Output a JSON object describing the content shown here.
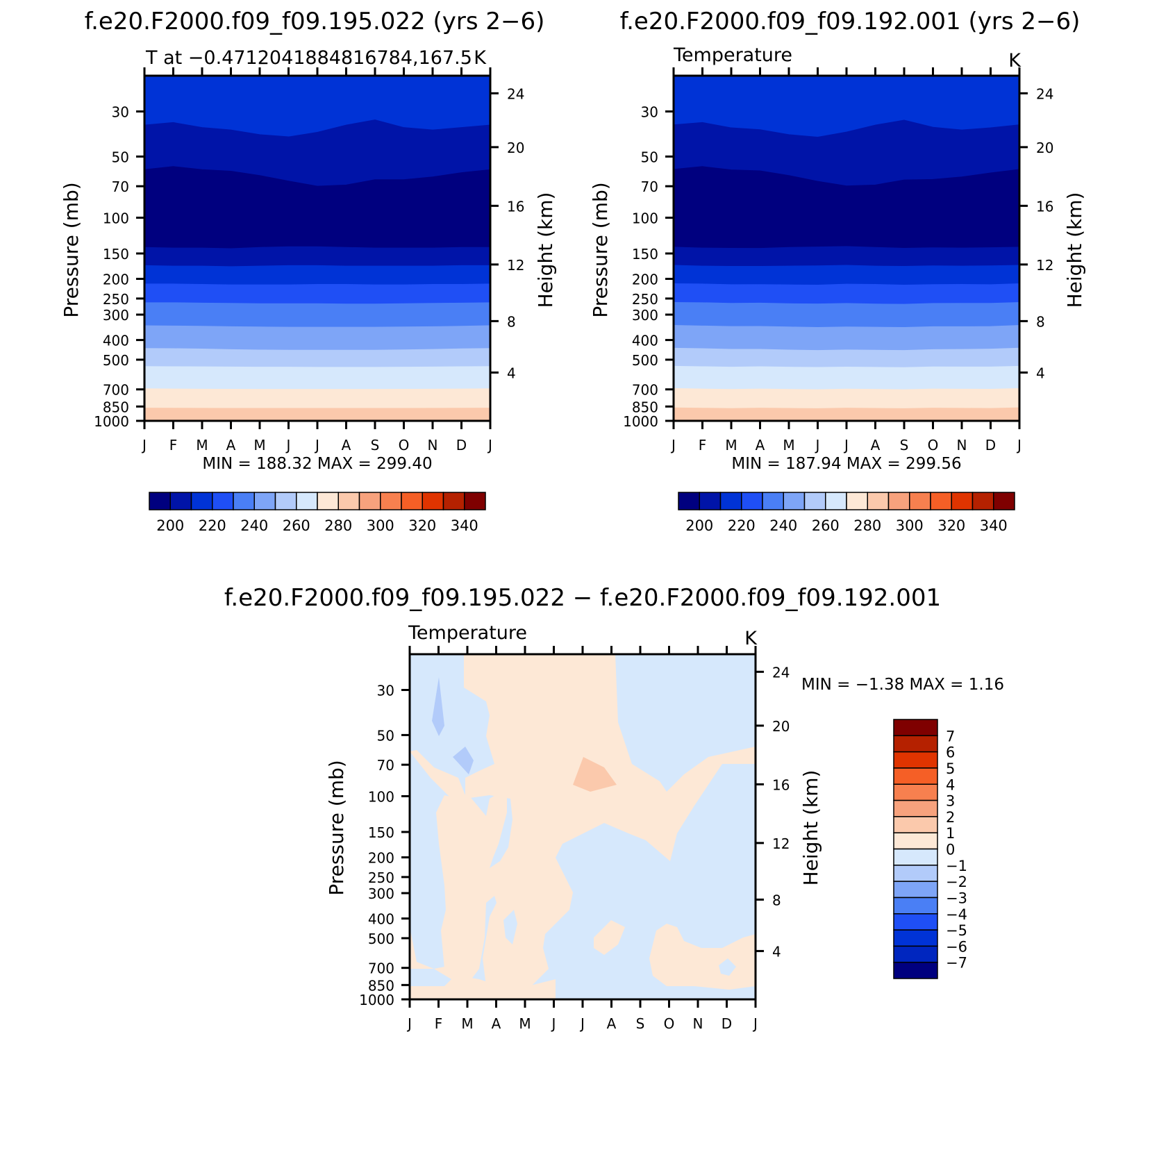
{
  "colors": {
    "abs_scale": [
      "#00007f",
      "#0014a8",
      "#0033d6",
      "#1f4ff5",
      "#4a7ff5",
      "#7ea5f7",
      "#b2cbfa",
      "#d6e8fc",
      "#fde8d6",
      "#fbc9ac",
      "#f7a27d",
      "#f7804f",
      "#f55f26",
      "#e03400",
      "#b52100",
      "#7f0000"
    ],
    "diff_scale": [
      "#00007f",
      "#0026bf",
      "#0033d6",
      "#1f4ff5",
      "#4a7ff5",
      "#7ea5f7",
      "#b2cbfa",
      "#d6e8fc",
      "#fde8d6",
      "#fbc9ac",
      "#f7a27d",
      "#f7804f",
      "#f55f26",
      "#e03400",
      "#b52100",
      "#7f0000"
    ]
  },
  "chart_data": [
    {
      "type": "heatmap",
      "title": "f.e20.F2000.f09_f09.195.022 (yrs 2−6)",
      "subtitle_left": "T at −0.4712041884816784,167.5",
      "subtitle_right": "K",
      "ylabel": "Pressure (mb)",
      "ylabel_right": "Height (km)",
      "x_ticks": [
        "J",
        "F",
        "M",
        "A",
        "M",
        "J",
        "J",
        "A",
        "S",
        "O",
        "N",
        "D",
        "J"
      ],
      "y_ticks": [
        "30",
        "50",
        "70",
        "100",
        "150",
        "200",
        "250",
        "300",
        "400",
        "500",
        "700",
        "850",
        "1000"
      ],
      "y_ticks_right": [
        "24",
        "20",
        "16",
        "12",
        "8",
        "4"
      ],
      "min_max_text": "MIN =  188.32  MAX =  299.40",
      "colorbar_labels": [
        "200",
        "220",
        "240",
        "260",
        "280",
        "300",
        "320",
        "340"
      ],
      "bands": [
        {
          "level": "below 210",
          "color_index": 2,
          "pressure_range_mb": [
            20,
            35
          ]
        },
        {
          "level": "200-210",
          "color_index": 1,
          "pressure_range_mb": [
            35,
            60
          ]
        },
        {
          "level": "190-200",
          "color_index": 0,
          "pressure_range_mb": [
            60,
            140
          ]
        },
        {
          "level": "200-210",
          "color_index": 1,
          "pressure_range_mb": [
            140,
            170
          ]
        },
        {
          "level": "210-220",
          "color_index": 2,
          "pressure_range_mb": [
            170,
            210
          ]
        },
        {
          "level": "220-230",
          "color_index": 3,
          "pressure_range_mb": [
            210,
            265
          ]
        },
        {
          "level": "230-240",
          "color_index": 4,
          "pressure_range_mb": [
            265,
            340
          ]
        },
        {
          "level": "240-250",
          "color_index": 5,
          "pressure_range_mb": [
            340,
            440
          ]
        },
        {
          "level": "250-260",
          "color_index": 6,
          "pressure_range_mb": [
            440,
            540
          ]
        },
        {
          "level": "260-270",
          "color_index": 7,
          "pressure_range_mb": [
            540,
            680
          ]
        },
        {
          "level": "270-280",
          "color_index": 8,
          "pressure_range_mb": [
            680,
            850
          ]
        },
        {
          "level": "280-290",
          "color_index": 9,
          "pressure_range_mb": [
            850,
            1000
          ]
        }
      ]
    },
    {
      "type": "heatmap",
      "title": "f.e20.F2000.f09_f09.192.001 (yrs 2−6)",
      "subtitle_left": "Temperature",
      "subtitle_right": "K",
      "ylabel": "Pressure (mb)",
      "ylabel_right": "Height (km)",
      "x_ticks": [
        "J",
        "F",
        "M",
        "A",
        "M",
        "J",
        "J",
        "A",
        "S",
        "O",
        "N",
        "D",
        "J"
      ],
      "y_ticks": [
        "30",
        "50",
        "70",
        "100",
        "150",
        "200",
        "250",
        "300",
        "400",
        "500",
        "700",
        "850",
        "1000"
      ],
      "y_ticks_right": [
        "24",
        "20",
        "16",
        "12",
        "8",
        "4"
      ],
      "min_max_text": "MIN =  187.94  MAX =  299.56",
      "colorbar_labels": [
        "200",
        "220",
        "240",
        "260",
        "280",
        "300",
        "320",
        "340"
      ]
    },
    {
      "type": "heatmap",
      "title": "f.e20.F2000.f09_f09.195.022 − f.e20.F2000.f09_f09.192.001",
      "subtitle_left": "Temperature",
      "subtitle_right": "K",
      "ylabel": "Pressure (mb)",
      "ylabel_right": "Height (km)",
      "x_ticks": [
        "J",
        "F",
        "M",
        "A",
        "M",
        "J",
        "J",
        "A",
        "S",
        "O",
        "N",
        "D",
        "J"
      ],
      "y_ticks": [
        "30",
        "50",
        "70",
        "100",
        "150",
        "200",
        "250",
        "300",
        "400",
        "500",
        "700",
        "850",
        "1000"
      ],
      "y_ticks_right": [
        "24",
        "20",
        "16",
        "12",
        "8",
        "4"
      ],
      "min_max_text": "MIN =  −1.38  MAX =     1.16",
      "colorbar_labels": [
        "7",
        "6",
        "5",
        "4",
        "3",
        "2",
        "1",
        "0",
        "−1",
        "−2",
        "−3",
        "−4",
        "−5",
        "−6",
        "−7"
      ],
      "dominant_levels": [
        "-1 to 0",
        "0 to 1"
      ]
    }
  ]
}
